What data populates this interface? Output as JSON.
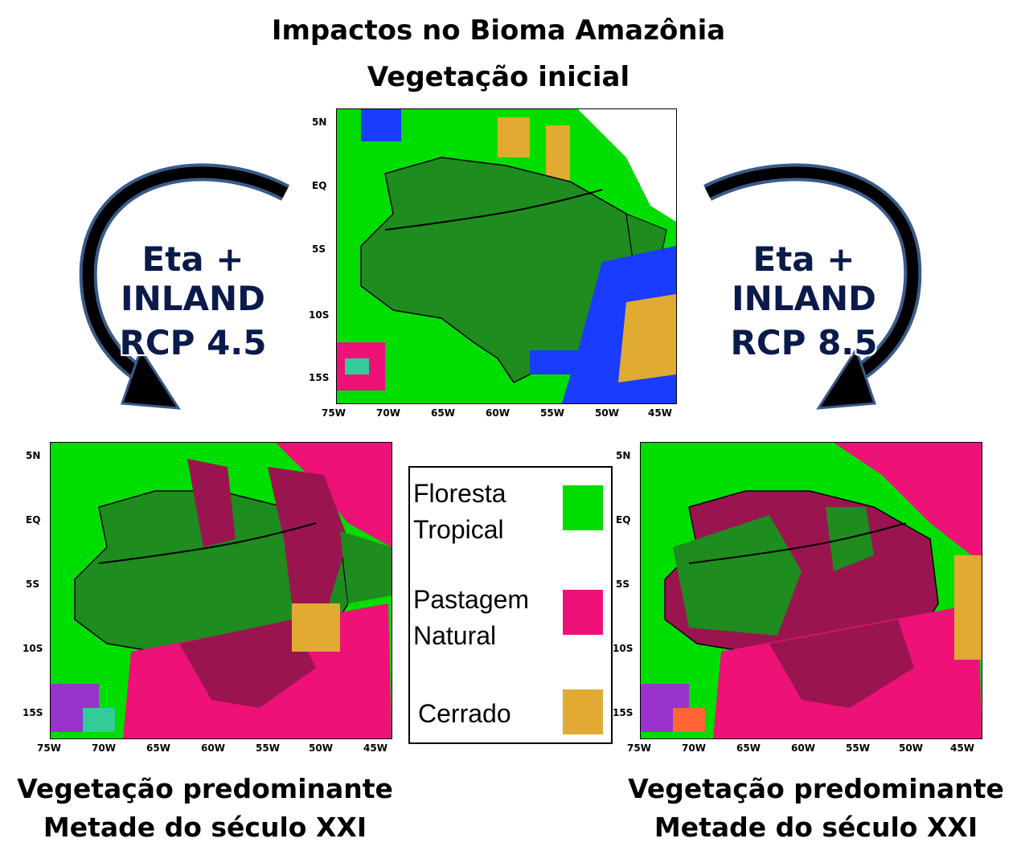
{
  "title": "Impactos no Bioma Amazônia",
  "subtitle": "Vegetação inicial",
  "scenario_left": {
    "line1": "Eta + INLAND",
    "line2": "RCP 4.5"
  },
  "scenario_right": {
    "line1": "Eta + INLAND",
    "line2": "RCP 8.5"
  },
  "caption_left": {
    "line1": "Vegetação predominante",
    "line2": "Metade do século XXI"
  },
  "caption_right": {
    "line1": "Vegetação predominante",
    "line2": "Metade do século XXI"
  },
  "lat_ticks": [
    "5N",
    "EQ",
    "5S",
    "10S",
    "15S"
  ],
  "lon_ticks": [
    "75W",
    "70W",
    "65W",
    "60W",
    "55W",
    "50W",
    "45W"
  ],
  "legend": {
    "items": [
      {
        "label_1": "Floresta",
        "label_2": "Tropical",
        "color": "#00dd00"
      },
      {
        "label_1": "Pastagem",
        "label_2": "Natural",
        "color": "#ee1177"
      },
      {
        "label_1": "Cerrado",
        "label_2": "",
        "color": "#e0aa33"
      }
    ]
  },
  "colors": {
    "forest_light": "#00dd00",
    "forest_dark": "#1e8c1e",
    "pasture": "#ee1177",
    "pasture_dark": "#9a1550",
    "cerrado": "#e0aa33",
    "water_blue": "#1a3cff",
    "arrow": "#000000",
    "arrow_outline": "#3a5a8a"
  }
}
